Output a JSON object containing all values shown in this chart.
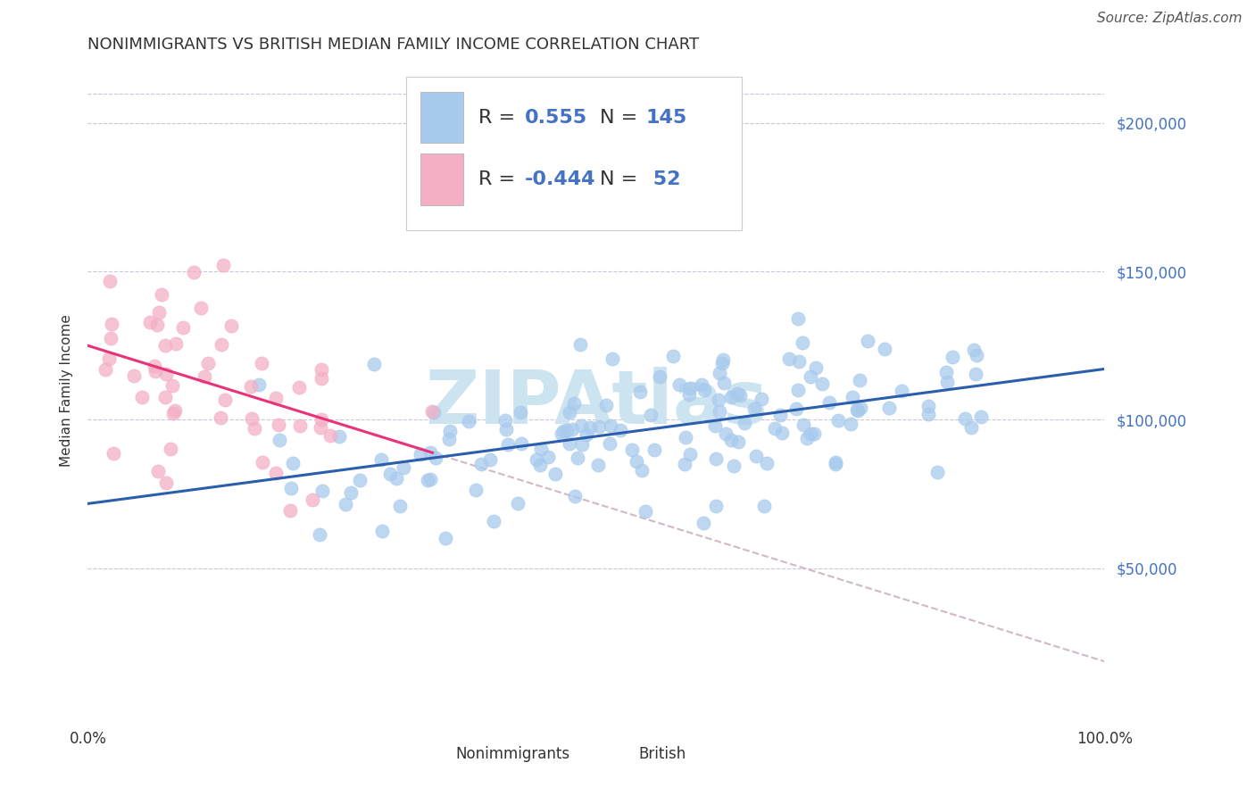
{
  "title": "NONIMMIGRANTS VS BRITISH MEDIAN FAMILY INCOME CORRELATION CHART",
  "source_text": "Source: ZipAtlas.com",
  "ylabel": "Median Family Income",
  "xlim": [
    0.0,
    1.0
  ],
  "ylim": [
    0,
    220000
  ],
  "xtick_positions": [
    0.0,
    1.0
  ],
  "xtick_labels": [
    "0.0%",
    "100.0%"
  ],
  "ytick_values": [
    50000,
    100000,
    150000,
    200000
  ],
  "ytick_labels": [
    "$50,000",
    "$100,000",
    "$150,000",
    "$200,000"
  ],
  "nonimm_dot_color": "#a8caed",
  "british_dot_color": "#f4afc5",
  "nonimm_line_color": "#2b5fad",
  "british_line_color": "#e8337a",
  "ext_line_color": "#d0b8c8",
  "grid_color": "#c8c8d8",
  "watermark_text": "ZIPAtlas",
  "watermark_color": "#cce4f0",
  "r_nonimm": 0.555,
  "n_nonimm": 145,
  "r_british": -0.444,
  "n_british": 52,
  "ytick_color": "#4472c4",
  "legend_text_color": "#4472c4",
  "legend_r_color": "#333333",
  "title_fontsize": 13,
  "axis_label_fontsize": 11,
  "tick_fontsize": 12,
  "legend_fontsize": 16,
  "source_fontsize": 11
}
